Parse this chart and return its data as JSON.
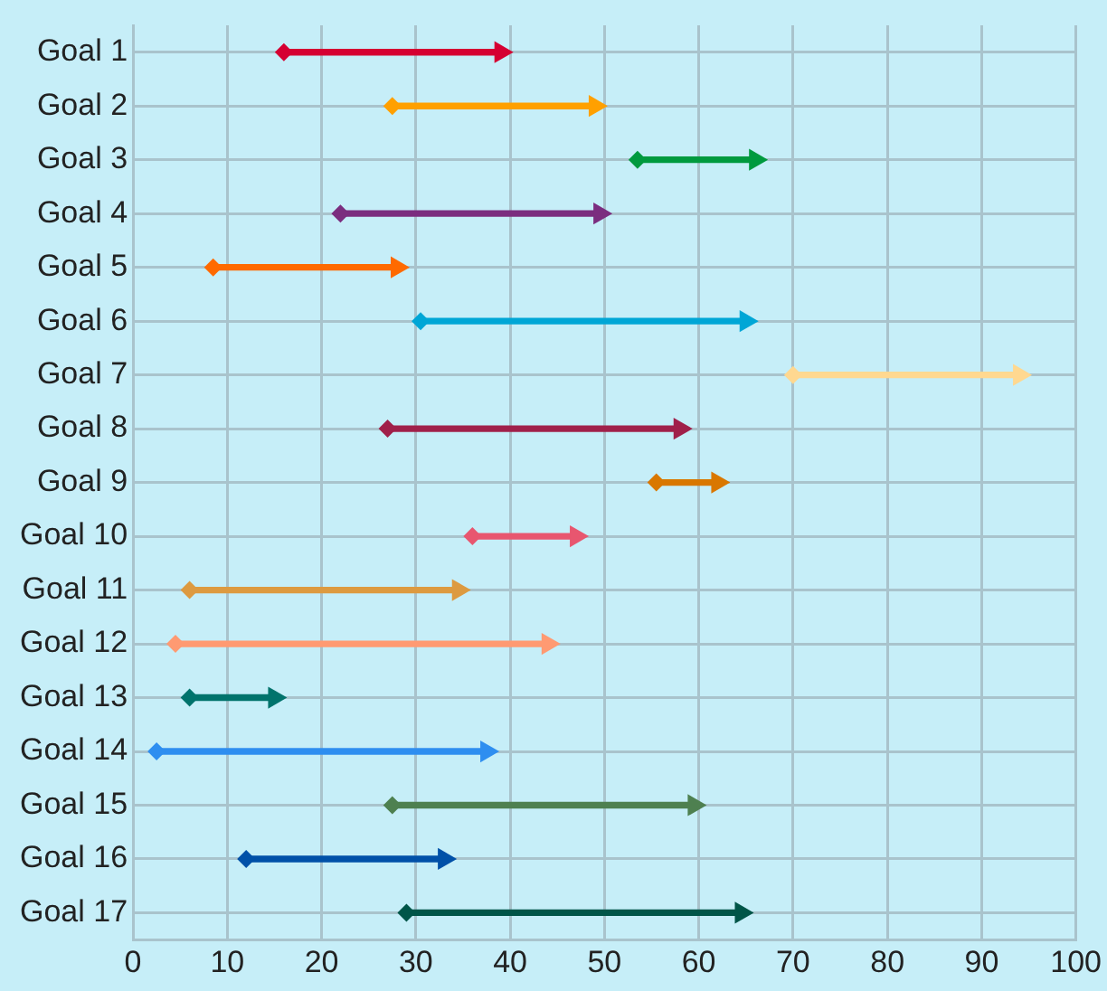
{
  "chart_data": {
    "type": "bar",
    "orientation": "horizontal",
    "categories": [
      "Goal 1",
      "Goal 2",
      "Goal 3",
      "Goal 4",
      "Goal 5",
      "Goal 6",
      "Goal 7",
      "Goal 8",
      "Goal 9",
      "Goal 10",
      "Goal 11",
      "Goal 12",
      "Goal 13",
      "Goal 14",
      "Goal 15",
      "Goal 16",
      "Goal 17"
    ],
    "series": [
      {
        "base": [
          16,
          27.5,
          53.5,
          22,
          8.5,
          30.5,
          70,
          27,
          55.5,
          36,
          6,
          4.5,
          6,
          2.5,
          27.5,
          12,
          29
        ],
        "values": [
          23,
          21.5,
          12.5,
          27.5,
          19.5,
          34.5,
          24,
          31,
          6.5,
          11,
          28.5,
          39.5,
          9,
          35,
          32,
          21,
          35.5
        ],
        "colors": [
          "#d50032",
          "#ffa000",
          "#009a3e",
          "#7b2d7f",
          "#ff6a00",
          "#00a6d6",
          "#ffd890",
          "#a0204a",
          "#d97700",
          "#e8566f",
          "#dd9a40",
          "#ff9a72",
          "#00736c",
          "#2e8ef0",
          "#4e8050",
          "#0050a8",
          "#005548"
        ]
      },
      {
        "type": "scatter",
        "marker": "diamond",
        "values": [
          16,
          27.5,
          53.5,
          22,
          8.5,
          30.5,
          70,
          27,
          55.5,
          36,
          6,
          4.5,
          6,
          2.5,
          27.5,
          12,
          29
        ],
        "colors": [
          "#d50032",
          "#ffa000",
          "#009a3e",
          "#7b2d7f",
          "#ff6a00",
          "#00a6d6",
          "#ffd890",
          "#a0204a",
          "#d97700",
          "#e8566f",
          "#dd9a40",
          "#ff9a72",
          "#00736c",
          "#2e8ef0",
          "#4e8050",
          "#0050a8",
          "#005548"
        ]
      },
      {
        "type": "scatter",
        "marker": "triangle",
        "values": [
          39,
          49,
          66,
          49.5,
          28,
          65,
          94,
          58,
          62,
          47,
          34.5,
          44,
          15,
          37.5,
          59.5,
          33,
          64.5
        ],
        "colors": [
          "#d50032",
          "#ffa000",
          "#009a3e",
          "#7b2d7f",
          "#ff6a00",
          "#00a6d6",
          "#ffd890",
          "#a0204a",
          "#d97700",
          "#e8566f",
          "#dd9a40",
          "#ff9a72",
          "#00736c",
          "#2e8ef0",
          "#4e8050",
          "#0050a8",
          "#005548"
        ]
      }
    ],
    "xlim": [
      0,
      100
    ],
    "xticks": [
      0,
      10,
      20,
      30,
      40,
      50,
      60,
      70,
      80,
      90,
      100
    ],
    "grid": true,
    "legend": false
  }
}
